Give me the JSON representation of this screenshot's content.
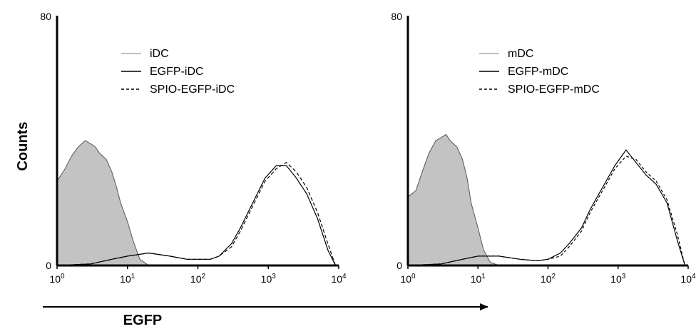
{
  "chart_data": [
    {
      "type": "area",
      "panel": "iDC",
      "xscale": "log",
      "xlim": [
        1,
        10000
      ],
      "ylim": [
        0,
        80
      ],
      "ylabel": "Counts",
      "y_ticks": [
        "80",
        "0"
      ],
      "x_ticks": [
        {
          "base": "10",
          "exp": "0"
        },
        {
          "base": "10",
          "exp": "1"
        },
        {
          "base": "10",
          "exp": "2"
        },
        {
          "base": "10",
          "exp": "3"
        },
        {
          "base": "10",
          "exp": "4"
        }
      ],
      "legend": [
        {
          "label": "iDC",
          "style": "solid",
          "color": "#aaaaaa"
        },
        {
          "label": "EGFP-iDC",
          "style": "solid",
          "color": "#000000"
        },
        {
          "label": "SPIO-EGFP-iDC",
          "style": "dashed",
          "color": "#000000"
        }
      ],
      "legend_position": "top-left",
      "series": [
        {
          "name": "iDC",
          "filled": true,
          "fill": "#c3c3c3",
          "stroke": "#555555",
          "x": [
            1,
            1.3,
            1.6,
            2,
            2.5,
            3,
            3.5,
            4,
            5,
            6,
            7,
            8,
            10,
            12,
            15,
            20
          ],
          "y": [
            27,
            31,
            35,
            38,
            40,
            39,
            38,
            36,
            34,
            30,
            25,
            20,
            14,
            8,
            2,
            0
          ]
        },
        {
          "name": "EGFP-iDC",
          "filled": false,
          "stroke": "#000000",
          "dash": "",
          "x": [
            1,
            3,
            6,
            10,
            20,
            40,
            70,
            100,
            150,
            200,
            300,
            400,
            600,
            900,
            1300,
            1800,
            2500,
            3500,
            5000,
            7000,
            9000
          ],
          "y": [
            0,
            0.5,
            2,
            3,
            4,
            3,
            2,
            2,
            2,
            3,
            7,
            12,
            20,
            28,
            32,
            32,
            28,
            23,
            15,
            5,
            0
          ]
        },
        {
          "name": "SPIO-EGFP-iDC",
          "filled": false,
          "stroke": "#000000",
          "dash": "5,3",
          "x": [
            1,
            3,
            6,
            10,
            20,
            40,
            70,
            100,
            150,
            200,
            300,
            400,
            600,
            900,
            1300,
            1800,
            2500,
            3500,
            5000,
            7000,
            9000
          ],
          "y": [
            0,
            0.5,
            2,
            3,
            4,
            3,
            2,
            2,
            2,
            3,
            6,
            11,
            19,
            27,
            31,
            33,
            30,
            25,
            17,
            7,
            0
          ]
        }
      ]
    },
    {
      "type": "area",
      "panel": "mDC",
      "xscale": "log",
      "xlim": [
        1,
        10000
      ],
      "ylim": [
        0,
        80
      ],
      "y_ticks": [
        "80",
        "0"
      ],
      "x_ticks": [
        {
          "base": "10",
          "exp": "0"
        },
        {
          "base": "10",
          "exp": "1"
        },
        {
          "base": "10",
          "exp": "2"
        },
        {
          "base": "10",
          "exp": "3"
        },
        {
          "base": "10",
          "exp": "4"
        }
      ],
      "legend": [
        {
          "label": "mDC",
          "style": "solid",
          "color": "#aaaaaa"
        },
        {
          "label": "EGFP-mDC",
          "style": "solid",
          "color": "#000000"
        },
        {
          "label": "SPIO-EGFP-mDC",
          "style": "dashed",
          "color": "#000000"
        }
      ],
      "legend_position": "top-right",
      "series": [
        {
          "name": "mDC",
          "filled": true,
          "fill": "#c3c3c3",
          "stroke": "#555555",
          "x": [
            1,
            1.3,
            1.6,
            2,
            2.5,
            3,
            3.5,
            4,
            5,
            6,
            7,
            8,
            10,
            12,
            15,
            20
          ],
          "y": [
            22,
            24,
            30,
            36,
            40,
            41,
            42,
            40,
            38,
            34,
            28,
            20,
            12,
            5,
            1,
            0
          ]
        },
        {
          "name": "EGFP-mDC",
          "filled": false,
          "stroke": "#000000",
          "dash": "",
          "x": [
            1,
            3,
            6,
            10,
            20,
            40,
            70,
            100,
            150,
            200,
            300,
            400,
            600,
            900,
            1300,
            1800,
            2500,
            3500,
            5000,
            7000,
            9000
          ],
          "y": [
            0,
            0.5,
            2,
            3,
            3,
            2,
            1.5,
            2,
            4,
            7,
            12,
            18,
            25,
            32,
            37,
            33,
            29,
            26,
            20,
            8,
            0
          ]
        },
        {
          "name": "SPIO-EGFP-mDC",
          "filled": false,
          "stroke": "#000000",
          "dash": "4,3",
          "x": [
            1,
            3,
            6,
            10,
            20,
            40,
            70,
            100,
            150,
            200,
            300,
            400,
            600,
            900,
            1300,
            1800,
            2500,
            3500,
            5000,
            7000,
            9000
          ],
          "y": [
            0,
            0.5,
            2,
            3,
            3,
            2,
            1.5,
            2,
            3,
            6,
            11,
            17,
            24,
            31,
            35,
            34,
            30,
            27,
            21,
            10,
            0
          ]
        }
      ]
    }
  ],
  "shared": {
    "xlabel": "EGFP"
  }
}
